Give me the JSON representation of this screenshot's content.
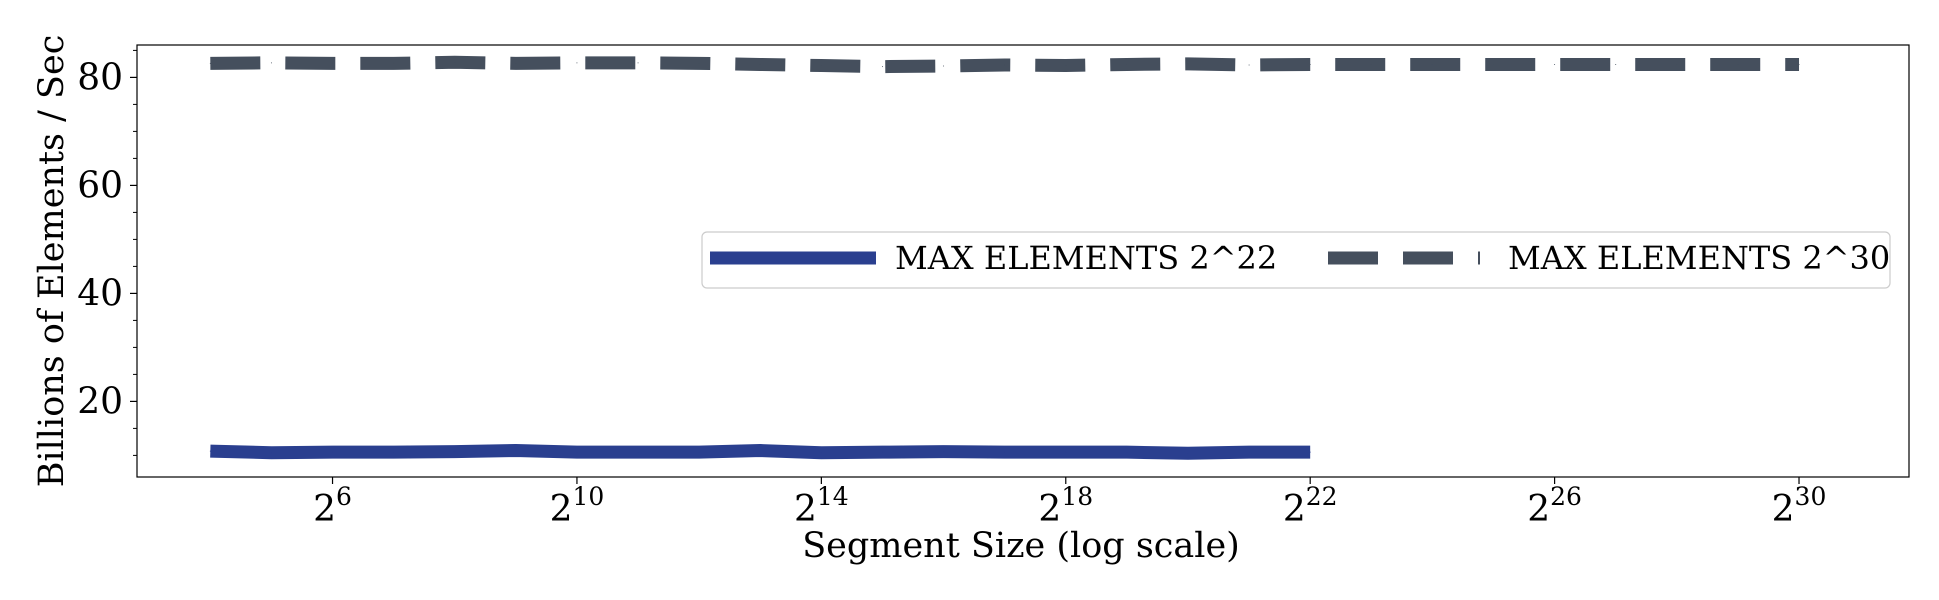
{
  "chart_data": {
    "type": "line",
    "xlabel": "Segment Size (log scale)",
    "ylabel": "Billions of Elements / Sec",
    "x_scale": "log2",
    "xlim_exponent": [
      2.8,
      31.8
    ],
    "ylim": [
      6,
      86
    ],
    "x_ticks": [
      {
        "exponent": 6,
        "base": "2",
        "sup": "6"
      },
      {
        "exponent": 10,
        "base": "2",
        "sup": "10"
      },
      {
        "exponent": 14,
        "base": "2",
        "sup": "14"
      },
      {
        "exponent": 18,
        "base": "2",
        "sup": "18"
      },
      {
        "exponent": 22,
        "base": "2",
        "sup": "22"
      },
      {
        "exponent": 26,
        "base": "2",
        "sup": "26"
      },
      {
        "exponent": 30,
        "base": "2",
        "sup": "30"
      }
    ],
    "y_ticks": [
      20,
      40,
      60,
      80
    ],
    "y_minor_ticks": [
      10,
      15,
      25,
      30,
      35,
      45,
      50,
      55,
      65,
      70,
      75,
      85
    ],
    "legend": {
      "placement": "center-right",
      "columns": 2
    },
    "series": [
      {
        "name": "MAX ELEMENTS 2^22",
        "color": "#2a3f8f",
        "style": "solid",
        "x_exponents": [
          4,
          5,
          6,
          7,
          8,
          9,
          10,
          11,
          12,
          13,
          14,
          15,
          16,
          17,
          18,
          19,
          20,
          21,
          22
        ],
        "values": [
          10.8,
          10.5,
          10.6,
          10.6,
          10.7,
          10.9,
          10.6,
          10.6,
          10.6,
          10.9,
          10.5,
          10.6,
          10.7,
          10.6,
          10.6,
          10.6,
          10.4,
          10.6,
          10.6
        ]
      },
      {
        "name": "MAX ELEMENTS 2^30",
        "color": "#454f5d",
        "style": "dashed",
        "x_exponents": [
          4,
          5,
          6,
          7,
          8,
          9,
          10,
          11,
          12,
          13,
          14,
          15,
          16,
          17,
          18,
          19,
          20,
          21,
          22,
          23,
          24,
          25,
          26,
          27,
          28,
          29,
          30
        ],
        "values": [
          82.6,
          82.7,
          82.6,
          82.6,
          82.8,
          82.6,
          82.7,
          82.7,
          82.6,
          82.4,
          82.2,
          82.0,
          82.1,
          82.3,
          82.2,
          82.4,
          82.5,
          82.3,
          82.4,
          82.4,
          82.4,
          82.4,
          82.4,
          82.4,
          82.4,
          82.4,
          82.4
        ]
      }
    ]
  }
}
